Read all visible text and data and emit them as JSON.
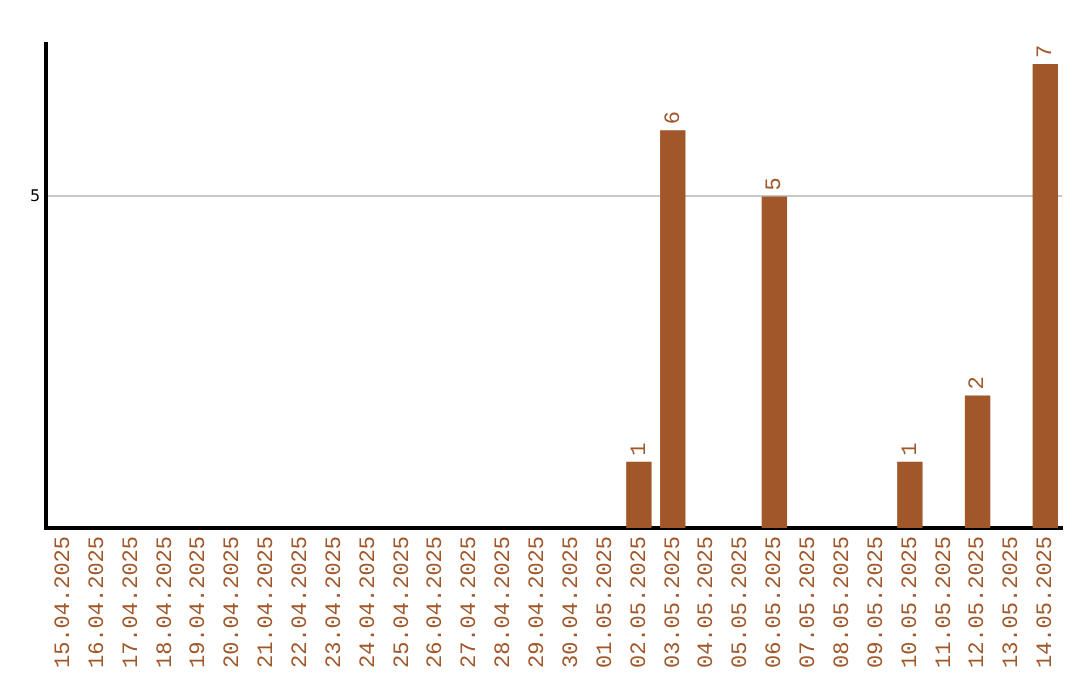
{
  "chart_data": {
    "type": "bar",
    "categories": [
      "15.04.2025",
      "16.04.2025",
      "17.04.2025",
      "18.04.2025",
      "19.04.2025",
      "20.04.2025",
      "21.04.2025",
      "22.04.2025",
      "23.04.2025",
      "24.04.2025",
      "25.04.2025",
      "26.04.2025",
      "27.04.2025",
      "28.04.2025",
      "29.04.2025",
      "30.04.2025",
      "01.05.2025",
      "02.05.2025",
      "03.05.2025",
      "04.05.2025",
      "05.05.2025",
      "06.05.2025",
      "07.05.2025",
      "08.05.2025",
      "09.05.2025",
      "10.05.2025",
      "11.05.2025",
      "12.05.2025",
      "13.05.2025",
      "14.05.2025"
    ],
    "values": [
      null,
      null,
      null,
      null,
      null,
      null,
      null,
      null,
      null,
      null,
      null,
      null,
      null,
      null,
      null,
      null,
      null,
      1,
      6,
      null,
      null,
      5,
      null,
      null,
      null,
      1,
      null,
      2,
      null,
      7
    ],
    "value_labels": [
      null,
      null,
      null,
      null,
      null,
      null,
      null,
      null,
      null,
      null,
      null,
      null,
      null,
      null,
      null,
      null,
      null,
      "1",
      "6",
      null,
      null,
      "5",
      null,
      null,
      null,
      "1",
      null,
      "2",
      null,
      "7"
    ],
    "color": "#a0572a",
    "ylim": [
      0,
      7.3
    ],
    "yticks": [
      5
    ],
    "grid": "y",
    "legend": false
  }
}
